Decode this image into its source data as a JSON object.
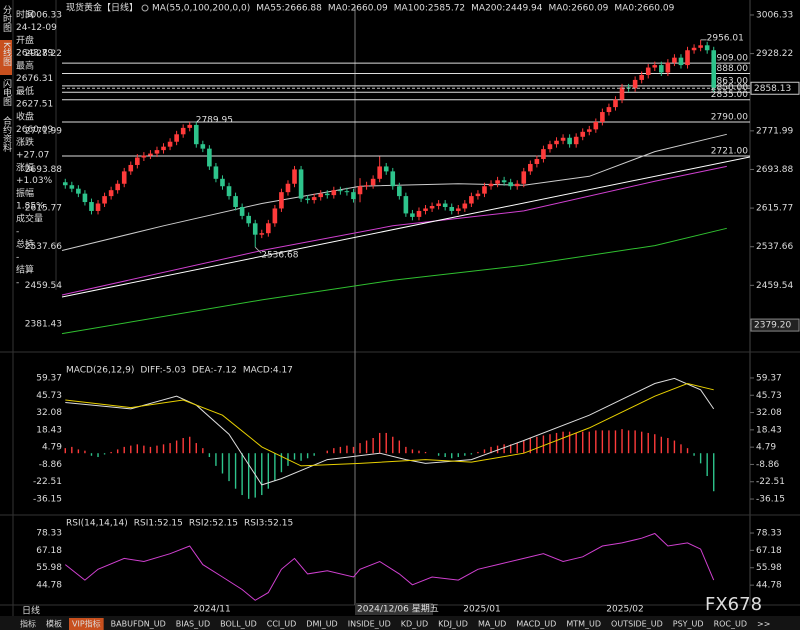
{
  "sidebar_tabs": [
    "分时图",
    "K线图",
    "闪电图",
    "合约资料"
  ],
  "info": {
    "rows": [
      {
        "label": "时间",
        "value": "24-12-09"
      },
      {
        "label": "开盘",
        "value": "2643.79"
      },
      {
        "label": "最高",
        "value": "2676.31"
      },
      {
        "label": "最低",
        "value": "2627.51"
      },
      {
        "label": "收盘",
        "value": "2660.09"
      },
      {
        "label": "涨跌",
        "value": "+27.07"
      },
      {
        "label": "涨幅",
        "value": "+1.03%"
      },
      {
        "label": "振幅",
        "value": "1.85%"
      },
      {
        "label": "成交量",
        "value": "-"
      },
      {
        "label": "总持",
        "value": "-"
      },
      {
        "label": "结算",
        "value": "-"
      }
    ]
  },
  "chart_data": [
    {
      "type": "candlestick",
      "title": "现货黄金【日线】",
      "legend": [
        {
          "text": "MA(55,0,100,200,0,0)",
          "color": "#bbbbbb"
        },
        {
          "text": "MA55:2666.88",
          "color": "#ffffff"
        },
        {
          "text": "MA0:2660.09",
          "color": "#e8e000"
        },
        {
          "text": "MA100:2585.72",
          "color": "#e040e0"
        },
        {
          "text": "MA200:2449.94",
          "color": "#40d040"
        },
        {
          "text": "MA0:2660.09",
          "color": "#999999"
        },
        {
          "text": "MA0:2660.09",
          "color": "#ff4040"
        }
      ],
      "up_color": "#ff3b3b",
      "down_color": "#2ec48c",
      "candles": [
        [
          2668,
          2675,
          2655,
          2662
        ],
        [
          2662,
          2669,
          2648,
          2655
        ],
        [
          2655,
          2662,
          2638,
          2645
        ],
        [
          2645,
          2652,
          2621,
          2628
        ],
        [
          2628,
          2635,
          2603,
          2610
        ],
        [
          2610,
          2632,
          2603,
          2625
        ],
        [
          2625,
          2647,
          2618,
          2640
        ],
        [
          2640,
          2659,
          2633,
          2652
        ],
        [
          2652,
          2672,
          2645,
          2665
        ],
        [
          2665,
          2697,
          2658,
          2690
        ],
        [
          2690,
          2710,
          2683,
          2703
        ],
        [
          2703,
          2725,
          2696,
          2718
        ],
        [
          2718,
          2729,
          2711,
          2722
        ],
        [
          2722,
          2733,
          2715,
          2726
        ],
        [
          2726,
          2740,
          2719,
          2733
        ],
        [
          2733,
          2747,
          2726,
          2740
        ],
        [
          2740,
          2757,
          2733,
          2750
        ],
        [
          2750,
          2772,
          2743,
          2765
        ],
        [
          2765,
          2785,
          2758,
          2778
        ],
        [
          2778,
          2789.95,
          2771,
          2784
        ],
        [
          2784,
          2791,
          2738,
          2745
        ],
        [
          2745,
          2752,
          2729,
          2736
        ],
        [
          2736,
          2743,
          2693,
          2700
        ],
        [
          2700,
          2707,
          2668,
          2675
        ],
        [
          2675,
          2682,
          2653,
          2660
        ],
        [
          2660,
          2667,
          2633,
          2640
        ],
        [
          2640,
          2647,
          2611,
          2618
        ],
        [
          2618,
          2625,
          2593,
          2600
        ],
        [
          2600,
          2607,
          2578,
          2585
        ],
        [
          2585,
          2592,
          2536.68,
          2562
        ],
        [
          2562,
          2572,
          2555,
          2565
        ],
        [
          2565,
          2592,
          2558,
          2585
        ],
        [
          2585,
          2622,
          2578,
          2615
        ],
        [
          2615,
          2655,
          2608,
          2648
        ],
        [
          2648,
          2672,
          2641,
          2665
        ],
        [
          2665,
          2701,
          2658,
          2694
        ],
        [
          2694,
          2701,
          2628,
          2635
        ],
        [
          2635,
          2642,
          2625,
          2632
        ],
        [
          2632,
          2645,
          2625,
          2638
        ],
        [
          2638,
          2652,
          2631,
          2645
        ],
        [
          2645,
          2652,
          2635,
          2642
        ],
        [
          2642,
          2659,
          2635,
          2652
        ],
        [
          2652,
          2659,
          2643,
          2650
        ],
        [
          2650,
          2657,
          2641,
          2648
        ],
        [
          2648,
          2655,
          2627,
          2634
        ],
        [
          2643.79,
          2676.31,
          2627.51,
          2660.09
        ],
        [
          2660,
          2669,
          2653,
          2662
        ],
        [
          2662,
          2682,
          2655,
          2675
        ],
        [
          2675,
          2720,
          2668,
          2700
        ],
        [
          2700,
          2707,
          2683,
          2690
        ],
        [
          2690,
          2697,
          2653,
          2660
        ],
        [
          2660,
          2667,
          2633,
          2640
        ],
        [
          2640,
          2647,
          2598,
          2605
        ],
        [
          2605,
          2612,
          2591,
          2598
        ],
        [
          2598,
          2617,
          2591,
          2610
        ],
        [
          2610,
          2622,
          2603,
          2615
        ],
        [
          2615,
          2627,
          2608,
          2620
        ],
        [
          2620,
          2632,
          2613,
          2625
        ],
        [
          2625,
          2632,
          2611,
          2618
        ],
        [
          2618,
          2625,
          2603,
          2610
        ],
        [
          2610,
          2622,
          2603,
          2615
        ],
        [
          2615,
          2632,
          2608,
          2625
        ],
        [
          2625,
          2647,
          2618,
          2640
        ],
        [
          2640,
          2652,
          2633,
          2645
        ],
        [
          2645,
          2667,
          2638,
          2660
        ],
        [
          2660,
          2672,
          2653,
          2665
        ],
        [
          2665,
          2679,
          2658,
          2672
        ],
        [
          2672,
          2679,
          2661,
          2668
        ],
        [
          2668,
          2675,
          2653,
          2660
        ],
        [
          2660,
          2672,
          2653,
          2665
        ],
        [
          2665,
          2697,
          2658,
          2690
        ],
        [
          2690,
          2712,
          2683,
          2705
        ],
        [
          2705,
          2722,
          2698,
          2715
        ],
        [
          2715,
          2742,
          2708,
          2735
        ],
        [
          2735,
          2752,
          2728,
          2745
        ],
        [
          2745,
          2759,
          2738,
          2752
        ],
        [
          2752,
          2765,
          2745,
          2758
        ],
        [
          2758,
          2765,
          2738,
          2745
        ],
        [
          2745,
          2767,
          2738,
          2760
        ],
        [
          2760,
          2777,
          2753,
          2770
        ],
        [
          2770,
          2782,
          2763,
          2775
        ],
        [
          2775,
          2797,
          2768,
          2790
        ],
        [
          2790,
          2817,
          2783,
          2810
        ],
        [
          2810,
          2827,
          2803,
          2820
        ],
        [
          2820,
          2842,
          2813,
          2835
        ],
        [
          2835,
          2867,
          2828,
          2860
        ],
        [
          2860,
          2867,
          2851,
          2858
        ],
        [
          2858,
          2882,
          2851,
          2875
        ],
        [
          2875,
          2892,
          2868,
          2885
        ],
        [
          2885,
          2907,
          2878,
          2900
        ],
        [
          2900,
          2912,
          2893,
          2905
        ],
        [
          2905,
          2912,
          2883,
          2890
        ],
        [
          2890,
          2917,
          2883,
          2910
        ],
        [
          2910,
          2927,
          2903,
          2920
        ],
        [
          2920,
          2927,
          2898,
          2905
        ],
        [
          2905,
          2942,
          2898,
          2935
        ],
        [
          2935,
          2947,
          2928,
          2940
        ],
        [
          2940,
          2956.01,
          2933,
          2945
        ],
        [
          2945,
          2952,
          2928,
          2935
        ],
        [
          2935,
          2942,
          2851,
          2858.13
        ]
      ],
      "series": [
        {
          "color": "#cccccc",
          "x": [
            -0.5,
            15,
            30,
            45,
            60,
            70,
            80,
            90,
            101
          ],
          "values": [
            2530,
            2580,
            2625,
            2660,
            2665,
            2662,
            2680,
            2730,
            2765
          ]
        },
        {
          "color": "#d040d0",
          "x": [
            -0.5,
            30,
            50,
            70,
            90,
            101
          ],
          "values": [
            2440,
            2530,
            2580,
            2610,
            2670,
            2700
          ]
        },
        {
          "color": "#30c030",
          "x": [
            -0.5,
            30,
            50,
            70,
            90,
            101
          ],
          "values": [
            2362,
            2430,
            2470,
            2500,
            2540,
            2575
          ]
        },
        {
          "color": "#ffffff",
          "x": [
            -0.5,
            104.5
          ],
          "values": [
            2436,
            2719
          ]
        }
      ],
      "levels": [
        {
          "value": 2909,
          "label": "2909.00"
        },
        {
          "value": 2888,
          "label": "2888.00"
        },
        {
          "value": 2863,
          "label": "2863.00"
        },
        {
          "value": 2850,
          "label": "2850.00"
        },
        {
          "value": 2835,
          "label": "2835.00"
        },
        {
          "value": 2790,
          "label": "2790.00"
        },
        {
          "value": 2721,
          "label": "2721.00"
        }
      ],
      "annotations": [
        2956.01,
        2789.95,
        2536.68
      ],
      "current_price": 2858.13,
      "low_marker": {
        "value": 2379.2,
        "label": "2379.20"
      },
      "ylim": [
        2349,
        3026.5
      ],
      "yticks": [
        3006.33,
        2928.22,
        2771.99,
        2693.88,
        2615.77,
        2537.66,
        2459.54,
        2381.43
      ]
    },
    {
      "type": "macd",
      "legend": [
        {
          "text": "MACD(26,12,9)",
          "color": "#ffffff"
        },
        {
          "text": "DIFF:-5.03",
          "color": "#ffffff"
        },
        {
          "text": "DEA:-7.12",
          "color": "#e8e000"
        },
        {
          "text": "MACD:4.17",
          "color": "#e040e0"
        }
      ],
      "histogram": {
        "up_color": "#ff3b3b",
        "down_color": "#2ec48c",
        "values": [
          4,
          5,
          3,
          2,
          -2,
          -3,
          -1,
          1,
          3,
          5,
          6,
          7,
          6,
          5,
          6,
          7,
          8,
          10,
          12,
          13,
          8,
          4,
          -3,
          -10,
          -16,
          -22,
          -28,
          -33,
          -36,
          -35,
          -33,
          -28,
          -22,
          -15,
          -10,
          -5,
          -6,
          -4,
          -2,
          0,
          2,
          4,
          5,
          6,
          5,
          8,
          10,
          12,
          16,
          16,
          13,
          10,
          5,
          3,
          2,
          1,
          0,
          -2,
          -3,
          -4,
          -3,
          -2,
          -1,
          1,
          3,
          5,
          6,
          7,
          7,
          8,
          10,
          12,
          13,
          14,
          15,
          16,
          17,
          17,
          16,
          17,
          17,
          18,
          18,
          18,
          18,
          19,
          18,
          18,
          17,
          16,
          15,
          13,
          12,
          10,
          7,
          4,
          -2,
          -8,
          -18,
          -30
        ]
      },
      "series": [
        {
          "color": "#dddddd",
          "x": [
            0,
            10,
            17,
            20,
            25,
            30,
            33,
            40,
            48,
            52,
            55,
            62,
            70,
            80,
            90,
            93,
            97,
            99
          ],
          "values": [
            40,
            35,
            45,
            38,
            15,
            -25,
            -20,
            -5,
            0,
            -5,
            -8,
            -5,
            10,
            30,
            55,
            59,
            50,
            35
          ]
        },
        {
          "color": "#e8d000",
          "x": [
            0,
            10,
            18,
            24,
            30,
            36,
            45,
            55,
            62,
            70,
            80,
            90,
            95,
            99
          ],
          "values": [
            42,
            36,
            42,
            30,
            5,
            -10,
            -8,
            -5,
            -7,
            0,
            20,
            45,
            55,
            50
          ]
        }
      ],
      "ylim": [
        -44.8,
        69.6
      ],
      "yticks": [
        59.37,
        45.73,
        32.08,
        18.43,
        4.79,
        -8.86,
        -22.51,
        -36.15
      ]
    },
    {
      "type": "line",
      "legend": [
        {
          "text": "RSI(14,14,14)",
          "color": "#ffffff"
        },
        {
          "text": "RSI1:52.15",
          "color": "#ffffff"
        },
        {
          "text": "RSI2:52.15",
          "color": "#e8e000"
        },
        {
          "text": "RSI3:52.15",
          "color": "#e040e0"
        }
      ],
      "series": [
        {
          "color": "#d040d0",
          "x": [
            0,
            3,
            5,
            9,
            12,
            16,
            19,
            21,
            24,
            27,
            29,
            31,
            33,
            35,
            37,
            40,
            44,
            45,
            48,
            51,
            53,
            56,
            60,
            63,
            66,
            70,
            73,
            76,
            79,
            82,
            85,
            88,
            90,
            92,
            95,
            97,
            99
          ],
          "values": [
            58,
            48,
            55,
            62,
            60,
            65,
            70,
            58,
            50,
            42,
            35,
            40,
            55,
            62,
            52,
            54,
            50,
            55,
            60,
            52,
            45,
            50,
            48,
            55,
            58,
            62,
            65,
            60,
            63,
            70,
            72,
            75,
            78,
            70,
            72,
            68,
            48
          ]
        }
      ],
      "ylim": [
        32,
        83.5
      ],
      "yticks": [
        78.33,
        67.18,
        55.98,
        44.78
      ]
    }
  ],
  "x_axis": {
    "labels": [
      "2024/11",
      "2025/01",
      "2025/02"
    ],
    "cursor": "2024/12/06 星期五"
  },
  "period": "日线",
  "bottom_tabs": [
    "指标",
    "模板",
    "VIP指标",
    "BABUFDN_UD",
    "BIAS_UD",
    "BOLL_UD",
    "CCI_UD",
    "DMI_UD",
    "INSIDE_UD",
    "KD_UD",
    "KDJ_UD",
    "MA_UD",
    "MACD_UD",
    "MTM_UD",
    "OUTSIDE_UD",
    "PSY_UD",
    "ROC_UD",
    ">>"
  ],
  "logo": "FX678"
}
